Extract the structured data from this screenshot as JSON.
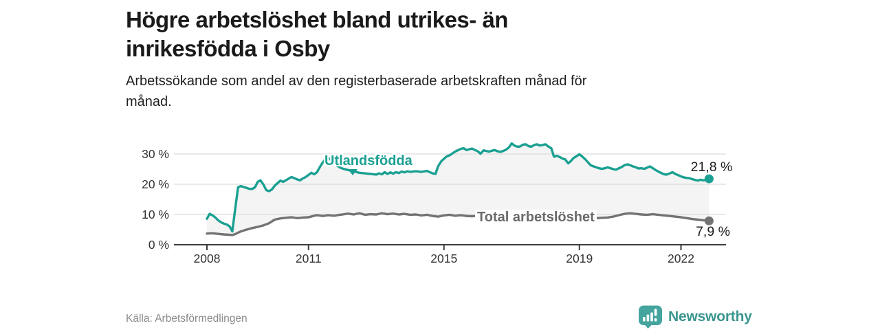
{
  "header": {
    "title_line1": "Högre arbetslöshet bland utrikes- än",
    "title_line2": "inrikesfödda i Osby",
    "subtitle_line1": "Arbetssökande som andel av den registerbaserade arbetskraften månad för",
    "subtitle_line2": "månad."
  },
  "footer": {
    "source": "Källa: Arbetsförmedlingen",
    "brand": "Newsworthy"
  },
  "colors": {
    "foreign_series": "#1aa092",
    "total_series": "#737373",
    "between_fill": "#f4f4f4",
    "grid": "#dcdcdc",
    "axis": "#3c3c3c",
    "tick_text": "#333333",
    "value_label": "#1d1d1d",
    "brand_teal": "#3a968f",
    "logo_icon_teal": "#45a49e"
  },
  "chart_data": {
    "type": "line",
    "x_unit": "decimal_year",
    "x_range": [
      2008.0,
      2022.83
    ],
    "ylim": [
      0,
      35
    ],
    "grid": "horizontal",
    "legend_position": "inline-labels",
    "yticks": [
      {
        "value": 0,
        "label": "0 %"
      },
      {
        "value": 10,
        "label": "10 %"
      },
      {
        "value": 20,
        "label": "20 %"
      },
      {
        "value": 30,
        "label": "30 %"
      }
    ],
    "xticks": [
      {
        "value": 2008,
        "label": "2008"
      },
      {
        "value": 2011,
        "label": "2011"
      },
      {
        "value": 2015,
        "label": "2015"
      },
      {
        "value": 2019,
        "label": "2019"
      },
      {
        "value": 2022,
        "label": "2022"
      }
    ],
    "series": [
      {
        "name": "Utlandsfödda",
        "color": "#1aa092",
        "end_label": "21,8 %",
        "end_value": 21.8,
        "points": [
          [
            2008.0,
            8.6
          ],
          [
            2008.08,
            10.2
          ],
          [
            2008.17,
            9.7
          ],
          [
            2008.25,
            9.0
          ],
          [
            2008.33,
            8.1
          ],
          [
            2008.42,
            7.4
          ],
          [
            2008.5,
            7.0
          ],
          [
            2008.58,
            6.7
          ],
          [
            2008.67,
            6.1
          ],
          [
            2008.75,
            4.4
          ],
          [
            2008.83,
            11.5
          ],
          [
            2008.92,
            19.0
          ],
          [
            2009.0,
            19.4
          ],
          [
            2009.08,
            19.1
          ],
          [
            2009.17,
            18.8
          ],
          [
            2009.25,
            18.5
          ],
          [
            2009.33,
            18.4
          ],
          [
            2009.42,
            19.0
          ],
          [
            2009.5,
            20.8
          ],
          [
            2009.58,
            21.3
          ],
          [
            2009.67,
            19.9
          ],
          [
            2009.75,
            18.1
          ],
          [
            2009.83,
            17.7
          ],
          [
            2009.92,
            18.3
          ],
          [
            2010.0,
            19.5
          ],
          [
            2010.08,
            20.3
          ],
          [
            2010.17,
            21.2
          ],
          [
            2010.25,
            20.8
          ],
          [
            2010.33,
            21.3
          ],
          [
            2010.42,
            21.9
          ],
          [
            2010.5,
            22.4
          ],
          [
            2010.58,
            22.0
          ],
          [
            2010.67,
            21.6
          ],
          [
            2010.75,
            21.3
          ],
          [
            2010.83,
            21.9
          ],
          [
            2010.92,
            22.4
          ],
          [
            2011.0,
            23.1
          ],
          [
            2011.08,
            23.8
          ],
          [
            2011.17,
            23.3
          ],
          [
            2011.25,
            24.0
          ],
          [
            2011.33,
            25.6
          ],
          [
            2011.42,
            27.2
          ],
          [
            2011.5,
            28.3
          ],
          [
            2011.58,
            28.8
          ],
          [
            2011.67,
            27.9
          ],
          [
            2011.75,
            27.0
          ],
          [
            2011.83,
            26.2
          ],
          [
            2011.92,
            25.6
          ],
          [
            2012.0,
            25.2
          ],
          [
            2012.17,
            24.7
          ],
          [
            2012.33,
            24.3
          ],
          [
            2012.5,
            23.8
          ],
          [
            2012.67,
            23.6
          ],
          [
            2012.83,
            23.4
          ],
          [
            2013.0,
            23.2
          ],
          [
            2013.08,
            23.6
          ],
          [
            2013.17,
            23.3
          ],
          [
            2013.25,
            24.0
          ],
          [
            2013.33,
            23.4
          ],
          [
            2013.42,
            23.9
          ],
          [
            2013.5,
            23.5
          ],
          [
            2013.58,
            24.0
          ],
          [
            2013.67,
            23.7
          ],
          [
            2013.75,
            24.2
          ],
          [
            2013.83,
            23.9
          ],
          [
            2013.92,
            24.3
          ],
          [
            2014.0,
            24.1
          ],
          [
            2014.17,
            24.3
          ],
          [
            2014.33,
            24.1
          ],
          [
            2014.5,
            24.4
          ],
          [
            2014.58,
            24.0
          ],
          [
            2014.67,
            23.6
          ],
          [
            2014.75,
            23.4
          ],
          [
            2014.83,
            26.0
          ],
          [
            2014.92,
            27.6
          ],
          [
            2015.0,
            28.4
          ],
          [
            2015.08,
            29.2
          ],
          [
            2015.17,
            29.6
          ],
          [
            2015.25,
            30.2
          ],
          [
            2015.33,
            30.8
          ],
          [
            2015.42,
            31.3
          ],
          [
            2015.5,
            31.7
          ],
          [
            2015.58,
            31.9
          ],
          [
            2015.67,
            31.3
          ],
          [
            2015.75,
            31.6
          ],
          [
            2015.83,
            31.8
          ],
          [
            2015.92,
            31.3
          ],
          [
            2016.0,
            30.9
          ],
          [
            2016.08,
            30.1
          ],
          [
            2016.17,
            31.2
          ],
          [
            2016.25,
            31.0
          ],
          [
            2016.33,
            30.8
          ],
          [
            2016.42,
            31.1
          ],
          [
            2016.5,
            31.3
          ],
          [
            2016.58,
            30.9
          ],
          [
            2016.67,
            30.7
          ],
          [
            2016.75,
            31.0
          ],
          [
            2016.83,
            31.4
          ],
          [
            2016.92,
            32.2
          ],
          [
            2017.0,
            33.5
          ],
          [
            2017.08,
            32.8
          ],
          [
            2017.17,
            32.4
          ],
          [
            2017.25,
            32.5
          ],
          [
            2017.33,
            33.1
          ],
          [
            2017.42,
            33.2
          ],
          [
            2017.5,
            32.6
          ],
          [
            2017.58,
            32.4
          ],
          [
            2017.67,
            33.0
          ],
          [
            2017.75,
            33.2
          ],
          [
            2017.83,
            32.8
          ],
          [
            2017.92,
            33.0
          ],
          [
            2018.0,
            33.2
          ],
          [
            2018.08,
            32.5
          ],
          [
            2018.17,
            31.9
          ],
          [
            2018.25,
            29.1
          ],
          [
            2018.33,
            29.4
          ],
          [
            2018.42,
            29.0
          ],
          [
            2018.5,
            28.5
          ],
          [
            2018.58,
            28.2
          ],
          [
            2018.67,
            26.9
          ],
          [
            2018.75,
            27.7
          ],
          [
            2018.83,
            28.7
          ],
          [
            2018.92,
            29.3
          ],
          [
            2019.0,
            29.9
          ],
          [
            2019.08,
            29.2
          ],
          [
            2019.17,
            28.3
          ],
          [
            2019.25,
            27.3
          ],
          [
            2019.33,
            26.3
          ],
          [
            2019.42,
            25.9
          ],
          [
            2019.5,
            25.6
          ],
          [
            2019.58,
            25.3
          ],
          [
            2019.67,
            25.1
          ],
          [
            2019.75,
            25.3
          ],
          [
            2019.83,
            25.6
          ],
          [
            2019.92,
            25.3
          ],
          [
            2020.0,
            25.0
          ],
          [
            2020.08,
            24.8
          ],
          [
            2020.17,
            25.3
          ],
          [
            2020.25,
            25.7
          ],
          [
            2020.33,
            26.3
          ],
          [
            2020.42,
            26.6
          ],
          [
            2020.5,
            26.3
          ],
          [
            2020.58,
            25.9
          ],
          [
            2020.67,
            25.6
          ],
          [
            2020.75,
            25.2
          ],
          [
            2020.83,
            25.3
          ],
          [
            2020.92,
            25.1
          ],
          [
            2021.0,
            25.5
          ],
          [
            2021.08,
            25.9
          ],
          [
            2021.17,
            25.3
          ],
          [
            2021.25,
            24.7
          ],
          [
            2021.33,
            24.2
          ],
          [
            2021.42,
            23.7
          ],
          [
            2021.5,
            23.3
          ],
          [
            2021.58,
            23.2
          ],
          [
            2021.67,
            23.6
          ],
          [
            2021.75,
            24.0
          ],
          [
            2021.83,
            23.4
          ],
          [
            2021.92,
            23.0
          ],
          [
            2022.0,
            22.6
          ],
          [
            2022.08,
            22.3
          ],
          [
            2022.17,
            22.1
          ],
          [
            2022.25,
            22.0
          ],
          [
            2022.33,
            21.7
          ],
          [
            2022.42,
            21.4
          ],
          [
            2022.5,
            21.2
          ],
          [
            2022.58,
            21.5
          ],
          [
            2022.67,
            21.3
          ],
          [
            2022.75,
            21.4
          ],
          [
            2022.83,
            21.8
          ]
        ]
      },
      {
        "name": "Total arbetslöshet",
        "color": "#737373",
        "end_label": "7,9 %",
        "end_value": 7.9,
        "points": [
          [
            2008.0,
            3.7
          ],
          [
            2008.17,
            3.8
          ],
          [
            2008.33,
            3.6
          ],
          [
            2008.5,
            3.4
          ],
          [
            2008.67,
            3.3
          ],
          [
            2008.75,
            3.2
          ],
          [
            2008.83,
            3.5
          ],
          [
            2008.92,
            4.0
          ],
          [
            2009.0,
            4.4
          ],
          [
            2009.17,
            5.0
          ],
          [
            2009.33,
            5.5
          ],
          [
            2009.5,
            5.9
          ],
          [
            2009.67,
            6.4
          ],
          [
            2009.83,
            7.1
          ],
          [
            2010.0,
            8.3
          ],
          [
            2010.17,
            8.7
          ],
          [
            2010.33,
            8.9
          ],
          [
            2010.5,
            9.1
          ],
          [
            2010.67,
            8.8
          ],
          [
            2010.83,
            9.0
          ],
          [
            2011.0,
            9.1
          ],
          [
            2011.17,
            9.6
          ],
          [
            2011.25,
            9.8
          ],
          [
            2011.42,
            9.5
          ],
          [
            2011.58,
            9.8
          ],
          [
            2011.75,
            9.6
          ],
          [
            2011.92,
            9.9
          ],
          [
            2012.0,
            10.0
          ],
          [
            2012.17,
            10.3
          ],
          [
            2012.33,
            10.0
          ],
          [
            2012.5,
            10.4
          ],
          [
            2012.67,
            9.9
          ],
          [
            2012.83,
            10.1
          ],
          [
            2013.0,
            10.0
          ],
          [
            2013.17,
            10.4
          ],
          [
            2013.33,
            10.1
          ],
          [
            2013.5,
            10.3
          ],
          [
            2013.67,
            10.0
          ],
          [
            2013.83,
            10.2
          ],
          [
            2014.0,
            9.9
          ],
          [
            2014.17,
            10.0
          ],
          [
            2014.33,
            9.7
          ],
          [
            2014.5,
            9.9
          ],
          [
            2014.67,
            9.5
          ],
          [
            2014.83,
            9.3
          ],
          [
            2015.0,
            9.7
          ],
          [
            2015.17,
            9.9
          ],
          [
            2015.33,
            9.6
          ],
          [
            2015.5,
            9.8
          ],
          [
            2015.67,
            9.5
          ],
          [
            2015.83,
            9.4
          ],
          [
            2016.0,
            9.6
          ],
          [
            2016.17,
            9.8
          ],
          [
            2016.33,
            9.5
          ],
          [
            2016.5,
            9.7
          ],
          [
            2016.67,
            9.4
          ],
          [
            2016.83,
            9.3
          ],
          [
            2017.0,
            9.5
          ],
          [
            2017.17,
            9.3
          ],
          [
            2017.33,
            9.4
          ],
          [
            2017.5,
            9.2
          ],
          [
            2017.67,
            9.1
          ],
          [
            2017.83,
            9.2
          ],
          [
            2018.0,
            9.0
          ],
          [
            2018.17,
            8.9
          ],
          [
            2018.33,
            8.7
          ],
          [
            2018.5,
            8.6
          ],
          [
            2018.67,
            8.5
          ],
          [
            2018.83,
            8.7
          ],
          [
            2019.0,
            8.8
          ],
          [
            2019.17,
            8.9
          ],
          [
            2019.33,
            8.7
          ],
          [
            2019.5,
            8.8
          ],
          [
            2019.67,
            8.9
          ],
          [
            2019.83,
            9.0
          ],
          [
            2020.0,
            9.3
          ],
          [
            2020.17,
            9.8
          ],
          [
            2020.33,
            10.2
          ],
          [
            2020.5,
            10.4
          ],
          [
            2020.67,
            10.2
          ],
          [
            2020.83,
            10.0
          ],
          [
            2021.0,
            9.9
          ],
          [
            2021.17,
            10.1
          ],
          [
            2021.33,
            9.9
          ],
          [
            2021.5,
            9.7
          ],
          [
            2021.67,
            9.5
          ],
          [
            2021.83,
            9.3
          ],
          [
            2022.0,
            9.1
          ],
          [
            2022.17,
            8.8
          ],
          [
            2022.33,
            8.5
          ],
          [
            2022.5,
            8.3
          ],
          [
            2022.67,
            8.1
          ],
          [
            2022.83,
            7.9
          ]
        ]
      }
    ]
  }
}
